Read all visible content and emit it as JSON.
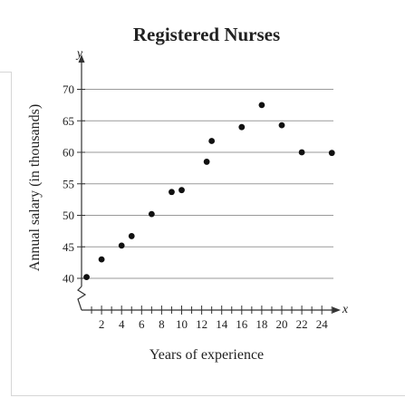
{
  "chart_data": {
    "type": "scatter",
    "title": "Registered Nurses",
    "xlabel": "Years of experience",
    "ylabel": "Annual salary (in thousands)",
    "x_axis_letter": "x",
    "y_axis_letter": "y",
    "xlim": [
      0,
      25
    ],
    "ylim": [
      38,
      70
    ],
    "x_ticks": [
      2,
      4,
      6,
      8,
      10,
      12,
      14,
      16,
      18,
      20,
      22,
      24
    ],
    "y_ticks": [
      40,
      45,
      50,
      55,
      60,
      65,
      70
    ],
    "y_axis_break": true,
    "grid": "horizontal",
    "colors": {
      "points": "#111111",
      "axis": "#333333",
      "grid": "#9a9a9a"
    },
    "points": [
      {
        "x": 0.5,
        "y": 40.2
      },
      {
        "x": 2,
        "y": 43
      },
      {
        "x": 4,
        "y": 45.2
      },
      {
        "x": 5,
        "y": 46.7
      },
      {
        "x": 7,
        "y": 50.2
      },
      {
        "x": 9,
        "y": 53.7
      },
      {
        "x": 10,
        "y": 54
      },
      {
        "x": 12.5,
        "y": 58.5
      },
      {
        "x": 13,
        "y": 61.8
      },
      {
        "x": 16,
        "y": 64
      },
      {
        "x": 18,
        "y": 67.5
      },
      {
        "x": 20,
        "y": 64.3
      },
      {
        "x": 22,
        "y": 60
      },
      {
        "x": 25,
        "y": 59.9
      }
    ]
  }
}
